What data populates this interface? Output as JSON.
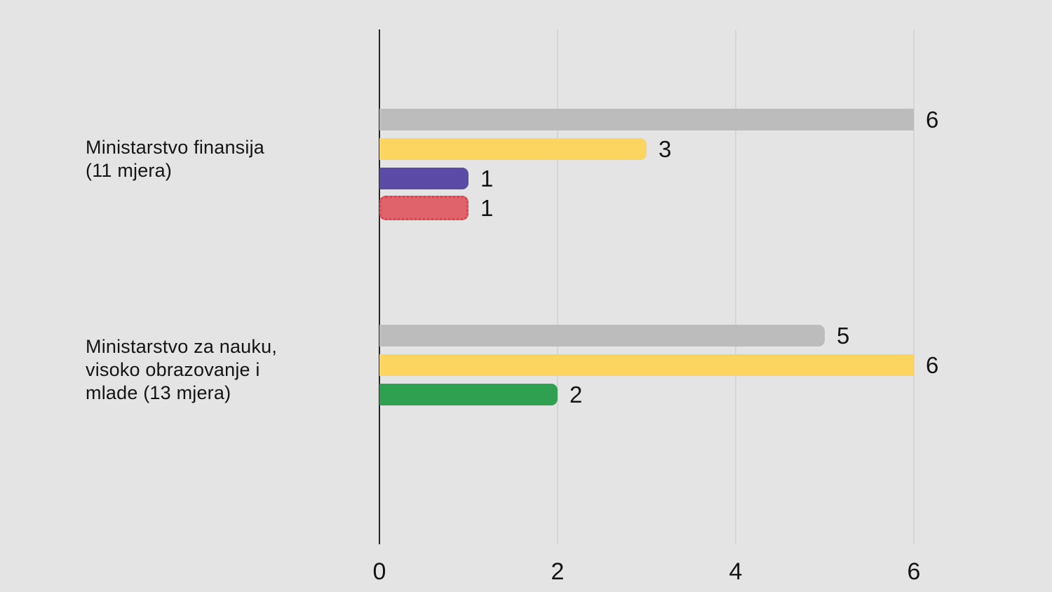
{
  "background_color": "#e5e4e4",
  "text_color": "#141414",
  "axis_color": "#252525",
  "gridline_color": "#d6d5d4",
  "chart_data": {
    "type": "bar",
    "orientation": "horizontal",
    "title": "",
    "xlabel": "",
    "ylabel": "",
    "xlim": [
      0,
      6
    ],
    "grid": true,
    "x_ticks": [
      {
        "value": 0,
        "label": "0"
      },
      {
        "value": 2,
        "label": "2"
      },
      {
        "value": 4,
        "label": "4"
      },
      {
        "value": 6,
        "label": "6"
      }
    ],
    "groups": [
      {
        "label": "Ministarstvo finansija (11 mjera)",
        "label_lines": [
          "Ministarstvo finansija",
          "(11 mjera)"
        ],
        "bars": [
          {
            "value": 6,
            "label": "6",
            "color": "#bdbcbc"
          },
          {
            "value": 3,
            "label": "3",
            "color": "#fbd55f"
          },
          {
            "value": 1,
            "label": "1",
            "color": "#5b4aa6"
          },
          {
            "value": 1,
            "label": "1",
            "color": "#e0636b",
            "border_color": "#e43e4f",
            "border_style": "dotted"
          }
        ]
      },
      {
        "label": "Ministarstvo za nauku, visoko obrazovanje i mlade (13 mjera)",
        "label_lines": [
          "Ministarstvo za nauku,",
          "visoko obrazovanje i",
          "mlade (13 mjera)"
        ],
        "bars": [
          {
            "value": 5,
            "label": "5",
            "color": "#bdbcbc"
          },
          {
            "value": 6,
            "label": "6",
            "color": "#fbd55f"
          },
          {
            "value": 2,
            "label": "2",
            "color": "#2fa04f"
          }
        ]
      }
    ]
  }
}
